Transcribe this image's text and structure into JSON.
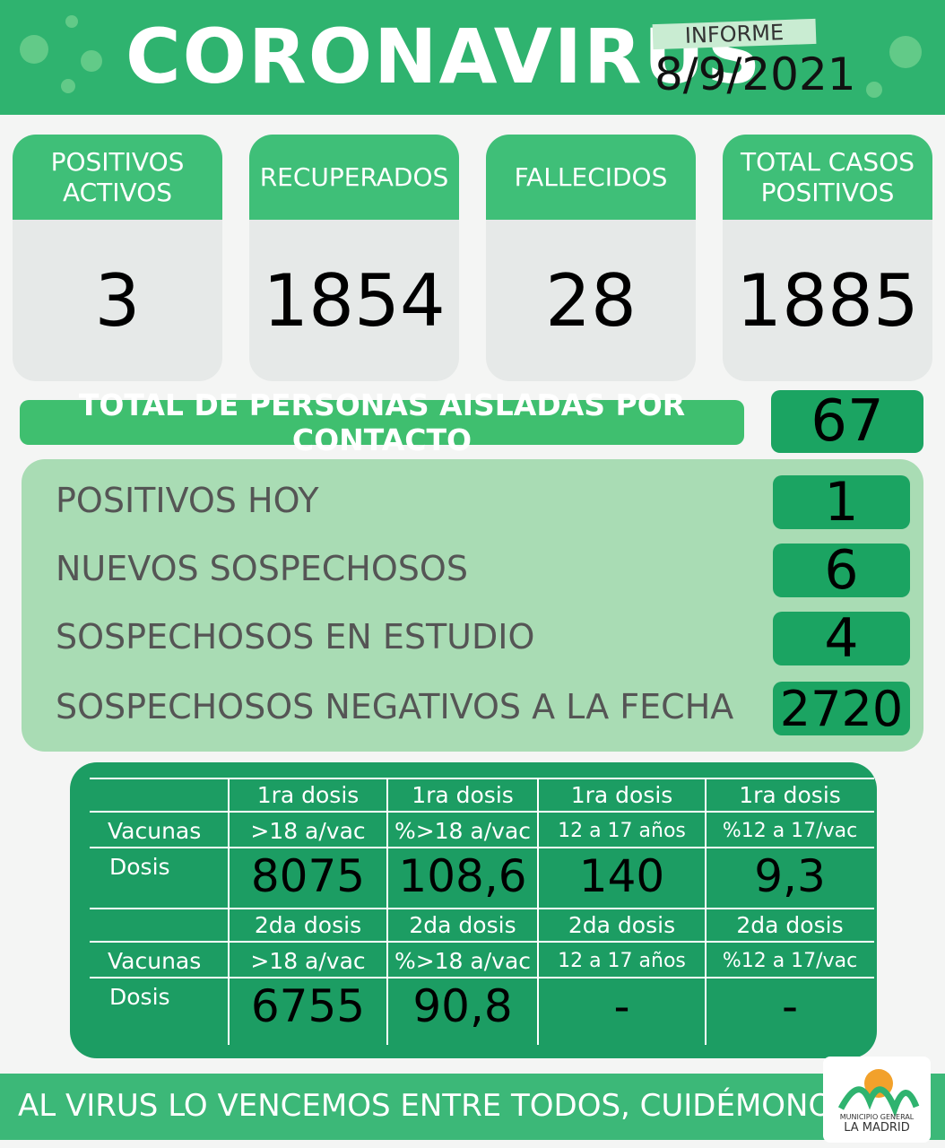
{
  "header": {
    "title": "CORONAVIRUS",
    "report_label": "INFORME",
    "date": "8/9/2021"
  },
  "cards": [
    {
      "label": [
        "POSITIVOS",
        "ACTIVOS"
      ],
      "value": 3
    },
    {
      "label": [
        "RECUPERADOS"
      ],
      "value": 1854
    },
    {
      "label": [
        "FALLECIDOS"
      ],
      "value": 28
    },
    {
      "label": [
        "TOTAL CASOS",
        "POSITIVOS"
      ],
      "value": 1885
    }
  ],
  "isolated": {
    "label": "TOTAL DE PERSONAS AISLADAS POR CONTACTO",
    "value": 67
  },
  "stats": [
    {
      "label": "POSITIVOS HOY",
      "value": 1
    },
    {
      "label": "NUEVOS SOSPECHOSOS",
      "value": 6
    },
    {
      "label": "SOSPECHOSOS EN ESTUDIO",
      "value": 4
    },
    {
      "label": "SOSPECHOSOS NEGATIVOS A LA FECHA",
      "value": 2720
    }
  ],
  "vaccines": [
    {
      "headers": [
        "1ra dosis",
        "1ra dosis",
        "1ra dosis",
        "1ra dosis"
      ],
      "subheaders": [
        ">18 a/vac",
        "%>18 a/vac",
        "12 a 17 años",
        "%12 a 17/vac"
      ],
      "row_label_1": "Vacunas",
      "row_label_2": "Dosis",
      "values": [
        "8075",
        "108,6",
        "140",
        "9,3"
      ]
    },
    {
      "headers": [
        "2da dosis",
        "2da dosis",
        "2da dosis",
        "2da dosis"
      ],
      "subheaders": [
        ">18 a/vac",
        "%>18 a/vac",
        "12 a 17 años",
        "%12 a 17/vac"
      ],
      "row_label_1": "Vacunas",
      "row_label_2": "Dosis",
      "values": [
        "6755",
        "90,8",
        "-",
        "-"
      ]
    }
  ],
  "footer": {
    "slogan": "AL VIRUS LO VENCEMOS ENTRE TODOS, CUIDÉMONOS",
    "logo_text": [
      "MUNICIPIO GENERAL",
      "LA MADRID"
    ]
  }
}
